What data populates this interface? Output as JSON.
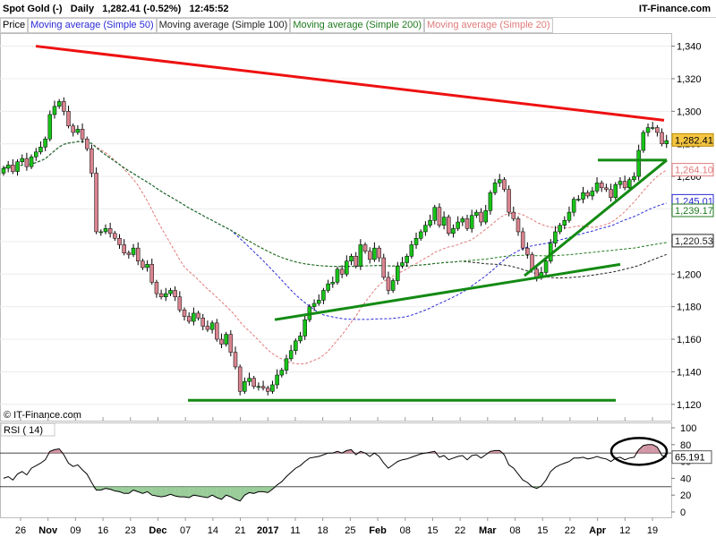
{
  "header": {
    "instrument": "Spot Gold (-)",
    "period": "Daily",
    "quote": "1,282.41 (-0.52%)",
    "time": "12:45:52",
    "brand": "IT-Finance.com"
  },
  "legend": {
    "price": "Price",
    "items": [
      {
        "label": "Moving average (Simple 50)",
        "color": "#2a2ad8"
      },
      {
        "label": "Moving average (Simple 100)",
        "color": "#222222"
      },
      {
        "label": "Moving average (Simple 200)",
        "color": "#1f7a1f"
      },
      {
        "label": "Moving average (Simple 20)",
        "color": "#e07a7a"
      }
    ]
  },
  "watermark": "© IT-Finance.com",
  "rsi_label": "RSI ( 14)",
  "colors": {
    "bull": "#19c419",
    "bear": "#d9848f",
    "trend_red": "#ee1111",
    "trend_green": "#138a13",
    "rsi_line": "#000000"
  },
  "chart_data": [
    {
      "type": "candlestick",
      "title": "Spot Gold (-) Daily",
      "ylim": [
        1110,
        1348
      ],
      "y_ticks": [
        "1,340",
        "1,320",
        "1,300",
        "1,280",
        "1,260",
        "1,240",
        "1,220",
        "1,200",
        "1,180",
        "1,160",
        "1,140",
        "1,120"
      ],
      "x_ticks": [
        "26",
        "Nov",
        "09",
        "16",
        "23",
        "Dec",
        "07",
        "14",
        "21",
        "2017",
        "11",
        "18",
        "25",
        "Feb",
        "08",
        "15",
        "22",
        "Mar",
        "08",
        "15",
        "22",
        "Apr",
        "12",
        "19"
      ],
      "price_labels": [
        {
          "label": "1,282.41",
          "value": 1282.41,
          "style": "last"
        },
        {
          "label": "1,264.10",
          "value": 1264.1,
          "color": "#e07a7a"
        },
        {
          "label": "1,245.01",
          "value": 1245.01,
          "color": "#2a2ad8"
        },
        {
          "label": "1,239.17",
          "value": 1239.17,
          "color": "#1f7a1f"
        },
        {
          "label": "1,220.53",
          "value": 1220.53,
          "color": "#222222"
        }
      ],
      "closes": [
        1265,
        1267,
        1263,
        1269,
        1271,
        1266,
        1272,
        1275,
        1278,
        1283,
        1298,
        1303,
        1306,
        1300,
        1291,
        1287,
        1289,
        1283,
        1277,
        1262,
        1226,
        1226,
        1228,
        1225,
        1222,
        1218,
        1213,
        1212,
        1216,
        1208,
        1204,
        1206,
        1195,
        1188,
        1186,
        1188,
        1190,
        1186,
        1178,
        1174,
        1171,
        1176,
        1173,
        1168,
        1166,
        1170,
        1160,
        1157,
        1163,
        1152,
        1143,
        1128,
        1134,
        1136,
        1131,
        1131,
        1130,
        1128,
        1132,
        1138,
        1141,
        1148,
        1153,
        1159,
        1162,
        1172,
        1180,
        1182,
        1184,
        1190,
        1194,
        1195,
        1203,
        1200,
        1208,
        1211,
        1205,
        1218,
        1214,
        1209,
        1216,
        1210,
        1198,
        1190,
        1196,
        1205,
        1207,
        1211,
        1218,
        1222,
        1226,
        1230,
        1233,
        1241,
        1230,
        1235,
        1225,
        1228,
        1232,
        1234,
        1228,
        1236,
        1238,
        1232,
        1239,
        1250,
        1256,
        1258,
        1252,
        1238,
        1234,
        1226,
        1216,
        1212,
        1203,
        1198,
        1201,
        1208,
        1219,
        1226,
        1230,
        1233,
        1238,
        1246,
        1246,
        1250,
        1248,
        1251,
        1256,
        1253,
        1252,
        1247,
        1255,
        1257,
        1253,
        1258,
        1260,
        1276,
        1287,
        1290,
        1290,
        1287,
        1280,
        1282
      ]
    },
    {
      "type": "line",
      "title": "RSI ( 14)",
      "ylim": [
        0,
        100
      ],
      "y_ticks": [
        "100",
        "80",
        "60",
        "40",
        "20",
        "0"
      ],
      "levels": [
        70,
        30
      ],
      "last_value_label": "65.191",
      "last_value": 65.191,
      "values": [
        40,
        42,
        38,
        45,
        48,
        44,
        52,
        55,
        58,
        62,
        72,
        74,
        75,
        68,
        58,
        54,
        56,
        50,
        45,
        35,
        26,
        26,
        28,
        27,
        25,
        24,
        22,
        22,
        26,
        24,
        22,
        24,
        20,
        19,
        18,
        19,
        21,
        19,
        18,
        18,
        17,
        20,
        19,
        18,
        17,
        20,
        17,
        15,
        20,
        18,
        15,
        13,
        20,
        23,
        22,
        24,
        24,
        23,
        27,
        32,
        36,
        42,
        47,
        52,
        55,
        60,
        64,
        65,
        66,
        68,
        70,
        70,
        72,
        70,
        73,
        74,
        68,
        72,
        70,
        66,
        70,
        66,
        58,
        52,
        56,
        60,
        62,
        63,
        65,
        67,
        69,
        70,
        71,
        72,
        65,
        67,
        62,
        64,
        66,
        67,
        62,
        67,
        68,
        64,
        68,
        72,
        73,
        73,
        68,
        56,
        52,
        45,
        38,
        35,
        30,
        28,
        31,
        38,
        48,
        53,
        56,
        58,
        60,
        64,
        64,
        65,
        63,
        64,
        66,
        64,
        63,
        60,
        64,
        65,
        62,
        64,
        65,
        74,
        79,
        80,
        80,
        77,
        67,
        65
      ]
    }
  ]
}
